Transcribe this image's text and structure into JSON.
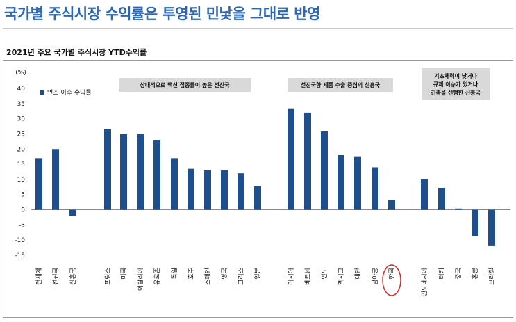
{
  "headline": "국가별 주식시장 수익률은 투영된 민낯을 그대로 반영",
  "chart_data": {
    "type": "bar",
    "title": "2021년 주요 국가별 주식시장 YTD수익률",
    "ylabel": "(%)",
    "ylim": [
      -15,
      40
    ],
    "yticks": [
      "40",
      "35",
      "30",
      "25",
      "20",
      "15",
      "10",
      "5",
      "0",
      "-5",
      "-10",
      "-15"
    ],
    "legend_label": "연초 이후 수익률",
    "legend_position": "top-left",
    "bar_color": "#1f4e8c",
    "highlight_color": "#d62728",
    "highlighted_category": "한국",
    "categories": [
      "전세계",
      "선진국",
      "신흥국",
      "프랑스",
      "미국",
      "이탈리아",
      "유로존",
      "독일",
      "호주",
      "스페인",
      "영국",
      "그리스",
      "일본",
      "러시아",
      "베트남",
      "인도",
      "멕시코",
      "대만",
      "남아공",
      "한국",
      "인도네시아",
      "터키",
      "중국",
      "홍콩",
      "브라질"
    ],
    "values": [
      17,
      20,
      -2,
      26.7,
      25,
      25,
      22.8,
      17,
      13.5,
      13,
      13,
      12,
      7.8,
      33.2,
      32,
      25.8,
      18,
      17.4,
      14,
      3.2,
      10,
      7.2,
      0.4,
      -8.8,
      -12
    ],
    "annotations": [
      {
        "lines": [
          "상대적으로 백신 접종률이 높은 선진국"
        ]
      },
      {
        "lines": [
          "선진국향 제품 수출 중심의 신흥국"
        ]
      },
      {
        "lines": [
          "기초체력이 낮거나",
          "규제 이슈가 있거나",
          "긴축을 선행한 신흥국"
        ]
      }
    ]
  }
}
